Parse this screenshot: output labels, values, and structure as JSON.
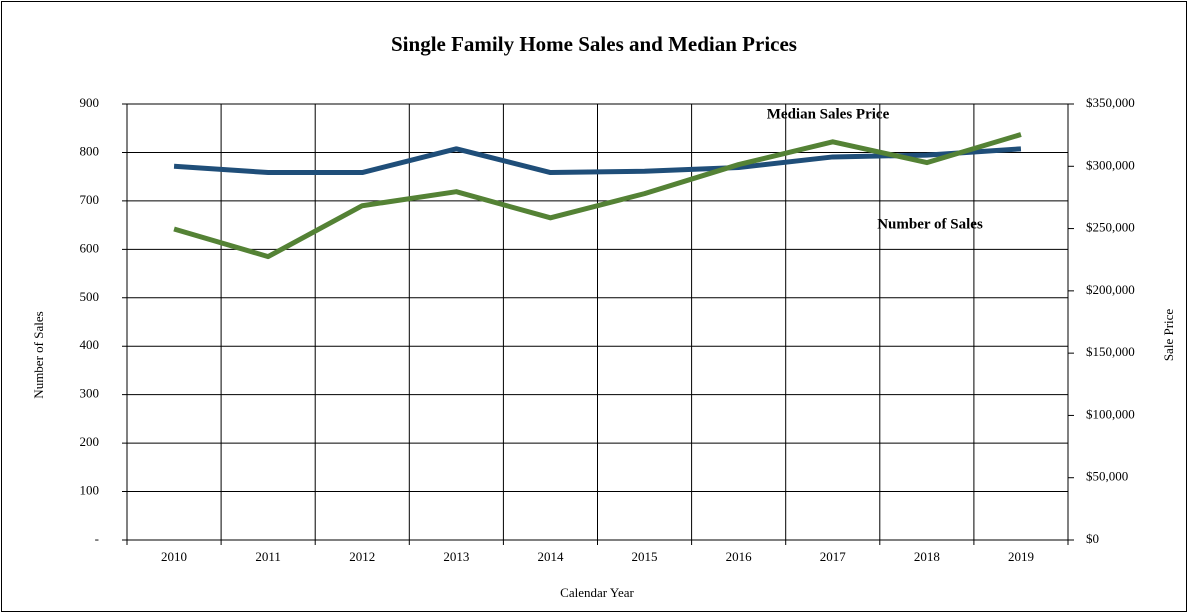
{
  "chart_data": {
    "type": "line",
    "title": "Single Family Home Sales and Median Prices",
    "x_label": "Calendar Year",
    "y_label": "Number of Sales",
    "y2_label": "Sale Price",
    "categories": [
      "2010",
      "2011",
      "2012",
      "2013",
      "2014",
      "2015",
      "2016",
      "2017",
      "2018",
      "2019"
    ],
    "series": [
      {
        "name": "Median Sales Price",
        "color": "#1f4e79",
        "axis": "y2",
        "values": [
          300000,
          295000,
          295000,
          314000,
          295000,
          296000,
          299000,
          307500,
          309000,
          314000
        ]
      },
      {
        "name": "Number of Sales",
        "color": "#548235",
        "values": [
          642,
          585,
          690,
          719,
          665,
          715,
          775,
          822,
          779,
          837
        ]
      }
    ],
    "ylim": [
      0,
      900
    ],
    "yticks": [
      {
        "value": 0,
        "label": "-"
      },
      100,
      200,
      300,
      400,
      500,
      600,
      700,
      800,
      900
    ],
    "y2lim": [
      0,
      350000
    ],
    "y2ticks": [
      {
        "value": 0,
        "label": "$0"
      },
      {
        "value": 50000,
        "label": "$50,000"
      },
      {
        "value": 100000,
        "label": "$100,000"
      },
      {
        "value": 150000,
        "label": "$150,000"
      },
      {
        "value": 200000,
        "label": "$200,000"
      },
      {
        "value": 250000,
        "label": "$250,000"
      },
      {
        "value": 300000,
        "label": "$300,000"
      },
      {
        "value": 350000,
        "label": "$350,000"
      }
    ],
    "grid": true
  }
}
